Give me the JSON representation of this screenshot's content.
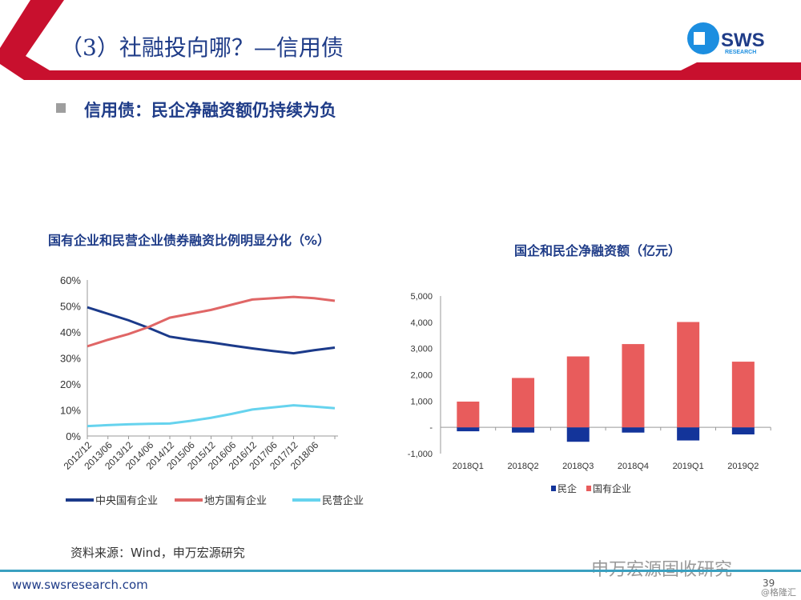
{
  "header": {
    "title": "（3）社融投向哪？—信用债",
    "logo_text": "SWS",
    "logo_sub": "RESEARCH"
  },
  "subtitle": "信用债：民企净融资额仍持续为负",
  "colors": {
    "red": "#c8102e",
    "navy": "#1f3c88",
    "central": "#1b3a8a",
    "local": "#e06666",
    "private": "#66d3ee",
    "soe_bar": "#e85c5c",
    "private_bar": "#13349a"
  },
  "chart_data": [
    {
      "type": "line",
      "title": "国有企业和民营企业债券融资比例明显分化（%）",
      "categories": [
        "2012/12",
        "2013/06",
        "2013/12",
        "2014/06",
        "2014/12",
        "2015/06",
        "2015/12",
        "2016/06",
        "2016/12",
        "2017/06",
        "2017/12",
        "2018/06",
        ""
      ],
      "yticks": [
        "0%",
        "10%",
        "20%",
        "30%",
        "40%",
        "50%",
        "60%"
      ],
      "ylim": [
        0,
        60
      ],
      "legend": "bottom",
      "series": [
        {
          "name": "中央国有企业",
          "color": "#1b3a8a",
          "values": [
            49.5,
            47,
            44.5,
            41.5,
            38.2,
            37,
            36,
            34.8,
            33.7,
            32.7,
            31.8,
            33,
            34
          ]
        },
        {
          "name": "地方国有企业",
          "color": "#e06666",
          "values": [
            34.5,
            37,
            39.2,
            42,
            45.5,
            47,
            48.5,
            50.5,
            52.5,
            53,
            53.5,
            53,
            52
          ]
        },
        {
          "name": "民营企业",
          "color": "#66d3ee",
          "values": [
            3.8,
            4.2,
            4.5,
            4.7,
            4.8,
            5.8,
            7,
            8.5,
            10.2,
            11,
            11.8,
            11.3,
            10.7
          ]
        }
      ]
    },
    {
      "type": "bar",
      "title": "国企和民企净融资额（亿元）",
      "categories": [
        "2018Q1",
        "2018Q2",
        "2018Q3",
        "2018Q4",
        "2019Q1",
        "2019Q2"
      ],
      "yticks": [
        "-1,000",
        "-",
        "1,000",
        "2,000",
        "3,000",
        "4,000",
        "5,000"
      ],
      "ylim": [
        -1000,
        5000
      ],
      "legend": "bottom",
      "series": [
        {
          "name": "民企",
          "color": "#13349a",
          "values": [
            -150,
            -200,
            -550,
            -200,
            -500,
            -270
          ]
        },
        {
          "name": "国有企业",
          "color": "#e85c5c",
          "values": [
            980,
            1880,
            2700,
            3170,
            4010,
            2500
          ]
        }
      ]
    }
  ],
  "footer": {
    "source": "资料来源：Wind，申万宏源研究",
    "url": "www.swsresearch.com",
    "page": "39",
    "watermark": "申万宏源固收研究",
    "watermark2": "@格隆汇"
  }
}
